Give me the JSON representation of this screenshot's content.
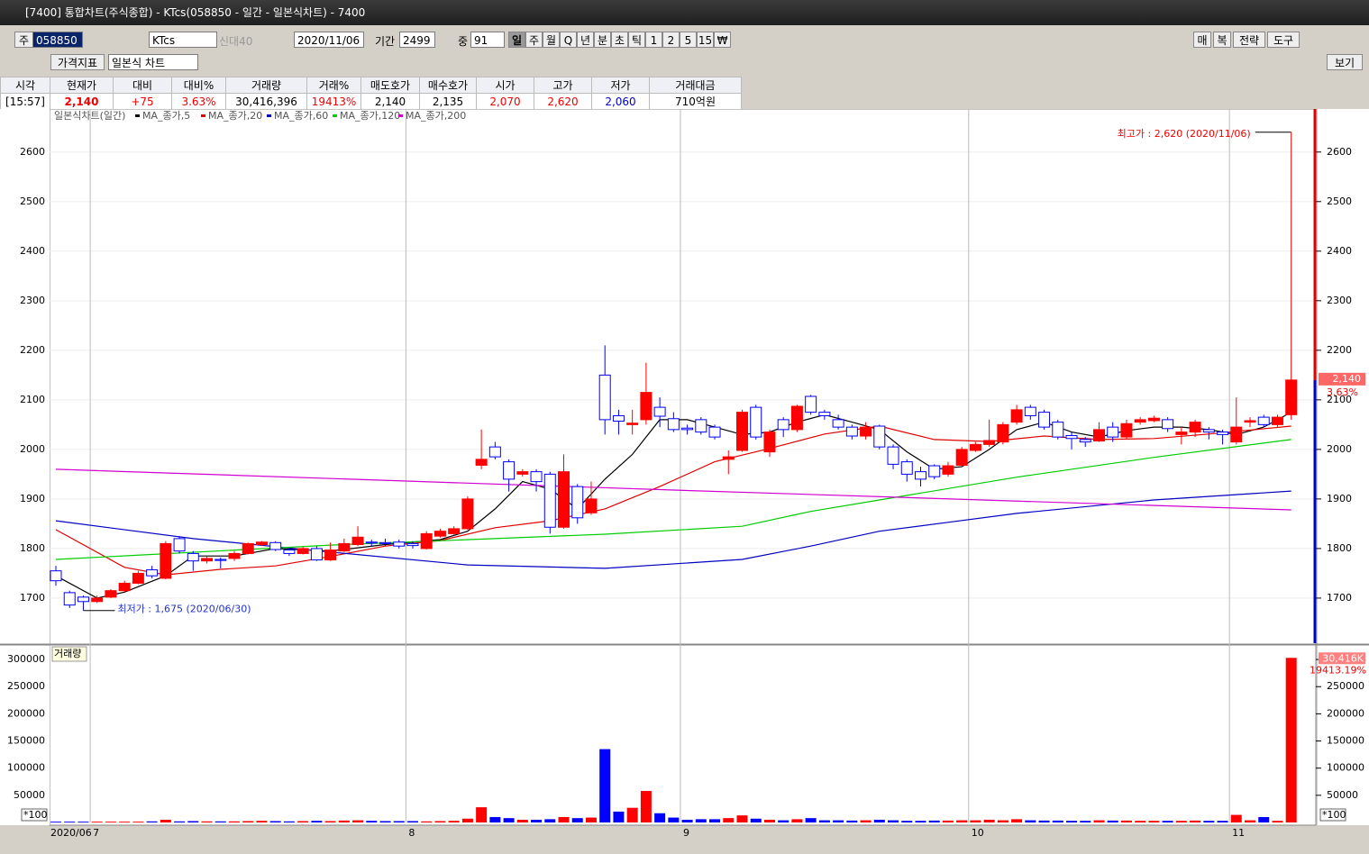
{
  "window_title": "[7400] 통합차트(주식종합) - KTcs(058850 - 일간 - 일본식차트) - 7400",
  "toolbar": {
    "market": "주",
    "code": "058850",
    "name": "KTcs",
    "tag": "신대40",
    "date": "2020/11/06",
    "period_label": "기간",
    "period": "2499",
    "count_label": "중",
    "count": "91",
    "intervals": [
      "일",
      "주",
      "월",
      "Q",
      "년",
      "분",
      "초",
      "틱",
      "1",
      "2",
      "5",
      "15",
      "₩"
    ],
    "right_buttons": [
      "매",
      "복",
      "전략",
      "도구"
    ],
    "indicator": "가격지표",
    "chart_style": "일본식 차트",
    "view": "보기"
  },
  "quote": {
    "headers": [
      "시각",
      "현재가",
      "대비",
      "대비%",
      "거래량",
      "거래%",
      "매도호가",
      "매수호가",
      "시가",
      "고가",
      "저가",
      "거래대금"
    ],
    "values": [
      "[15:57]",
      "2,140",
      "+75",
      "3.63%",
      "30,416,396",
      "19413%",
      "2,140",
      "2,135",
      "2,070",
      "2,620",
      "2,060",
      "710억원"
    ]
  },
  "chart_data": {
    "type": "candlestick",
    "legend_title": "일본식차트(일간)",
    "categories": [
      "2020/06",
      null,
      null,
      "7",
      null,
      null,
      null,
      null,
      null,
      null,
      null,
      null,
      null,
      null,
      null,
      null,
      null,
      null,
      null,
      null,
      null,
      null,
      null,
      null,
      null,
      null,
      "8",
      null,
      null,
      null,
      null,
      null,
      null,
      null,
      null,
      null,
      null,
      null,
      null,
      null,
      null,
      null,
      null,
      null,
      null,
      null,
      "9",
      null,
      null,
      null,
      null,
      null,
      null,
      null,
      null,
      null,
      null,
      null,
      null,
      null,
      null,
      null,
      null,
      null,
      null,
      null,
      null,
      "10",
      null,
      null,
      null,
      null,
      null,
      null,
      null,
      null,
      null,
      null,
      null,
      null,
      null,
      null,
      null,
      null,
      null,
      null,
      "11",
      null,
      null,
      null,
      null
    ],
    "open": [
      1755,
      1711,
      1702,
      1693,
      1702,
      1715,
      1730,
      1757,
      1740,
      1820,
      1790,
      1775,
      1778,
      1780,
      1790,
      1808,
      1812,
      1797,
      1790,
      1800,
      1777,
      1795,
      1808,
      1813,
      1812,
      1813,
      1810,
      1800,
      1825,
      1830,
      1840,
      1968,
      2005,
      1975,
      1950,
      1955,
      1950,
      1843,
      1925,
      1872,
      2150,
      2068,
      2050,
      2060,
      2085,
      2062,
      2043,
      2060,
      2045,
      1980,
      1998,
      2085,
      1995,
      2060,
      2040,
      2107,
      2075,
      2060,
      2045,
      2027,
      2047,
      2005,
      1975,
      1955,
      1967,
      1950,
      1968,
      1998,
      2010,
      2015,
      2055,
      2085,
      2075,
      2055,
      2028,
      2020,
      2017,
      2045,
      2025,
      2055,
      2058,
      2060,
      2030,
      2035,
      2040,
      2035,
      2015,
      2055,
      2065,
      2050,
      2070
    ],
    "high": [
      1765,
      1715,
      1705,
      1705,
      1718,
      1735,
      1755,
      1765,
      1815,
      1825,
      1795,
      1785,
      1782,
      1795,
      1812,
      1815,
      1815,
      1800,
      1803,
      1805,
      1812,
      1820,
      1845,
      1818,
      1820,
      1818,
      1815,
      1835,
      1840,
      1845,
      1905,
      2040,
      2015,
      1980,
      1960,
      1960,
      1955,
      1990,
      1930,
      1935,
      2210,
      2080,
      2080,
      2175,
      2105,
      2075,
      2050,
      2065,
      2050,
      1998,
      2080,
      2090,
      2040,
      2065,
      2090,
      2110,
      2080,
      2070,
      2050,
      2055,
      2050,
      2010,
      1980,
      1965,
      1970,
      1975,
      2005,
      2015,
      2060,
      2055,
      2090,
      2090,
      2080,
      2060,
      2035,
      2025,
      2055,
      2055,
      2060,
      2065,
      2068,
      2065,
      2045,
      2060,
      2045,
      2040,
      2105,
      2065,
      2070,
      2070,
      2620
    ],
    "low": [
      1725,
      1680,
      1675,
      1690,
      1700,
      1712,
      1728,
      1740,
      1738,
      1790,
      1755,
      1770,
      1760,
      1775,
      1788,
      1805,
      1795,
      1785,
      1788,
      1775,
      1775,
      1793,
      1805,
      1805,
      1805,
      1800,
      1800,
      1798,
      1822,
      1828,
      1838,
      1960,
      1980,
      1915,
      1945,
      1915,
      1830,
      1840,
      1850,
      1868,
      2030,
      2030,
      2030,
      2050,
      2045,
      2035,
      2030,
      2030,
      2020,
      1950,
      1995,
      2020,
      1985,
      2025,
      2035,
      2070,
      2060,
      2040,
      2020,
      2020,
      2000,
      1960,
      1935,
      1925,
      1940,
      1945,
      1965,
      1995,
      2005,
      2010,
      2050,
      2060,
      2040,
      2020,
      2000,
      2005,
      2015,
      2015,
      2020,
      2050,
      2055,
      2035,
      2010,
      2025,
      2020,
      2010,
      2010,
      2045,
      2045,
      2045,
      2060
    ],
    "close": [
      1735,
      1686,
      1693,
      1700,
      1715,
      1730,
      1750,
      1745,
      1810,
      1795,
      1775,
      1780,
      1776,
      1790,
      1810,
      1813,
      1798,
      1790,
      1800,
      1777,
      1797,
      1810,
      1823,
      1811,
      1810,
      1805,
      1806,
      1830,
      1835,
      1840,
      1900,
      1980,
      1985,
      1940,
      1955,
      1935,
      1843,
      1955,
      1862,
      1900,
      2060,
      2057,
      2053,
      2115,
      2067,
      2040,
      2040,
      2035,
      2025,
      1985,
      2075,
      2025,
      2035,
      2040,
      2087,
      2075,
      2068,
      2045,
      2027,
      2045,
      2005,
      1970,
      1950,
      1940,
      1945,
      1967,
      2000,
      2010,
      2018,
      2050,
      2080,
      2068,
      2045,
      2025,
      2022,
      2015,
      2040,
      2025,
      2052,
      2060,
      2063,
      2042,
      2035,
      2055,
      2035,
      2030,
      2045,
      2058,
      2050,
      2065,
      2140
    ],
    "up_color": "#ff0000",
    "down_color": "#0000ff",
    "ylim": [
      1609,
      2685
    ],
    "yticks": [
      1700,
      1800,
      1900,
      2000,
      2100,
      2200,
      2300,
      2400,
      2500,
      2600
    ],
    "grid": true,
    "series": [
      {
        "name": "MA_종가,5",
        "color": "#000000",
        "x": [
          0,
          3,
          5,
          8,
          10,
          13,
          16,
          20,
          24,
          28,
          30,
          32,
          34,
          36,
          38,
          40,
          42,
          44,
          46,
          48,
          50,
          52,
          54,
          56,
          58,
          60,
          62,
          64,
          66,
          68,
          70,
          72,
          74,
          76,
          78,
          80,
          82,
          84,
          86,
          88,
          90
        ],
        "values": [
          1745,
          1700,
          1712,
          1745,
          1785,
          1785,
          1800,
          1795,
          1808,
          1818,
          1835,
          1880,
          1935,
          1920,
          1880,
          1940,
          1990,
          2060,
          2060,
          2045,
          2030,
          2035,
          2055,
          2070,
          2055,
          2040,
          1995,
          1960,
          1965,
          2000,
          2040,
          2055,
          2035,
          2025,
          2038,
          2045,
          2045,
          2040,
          2030,
          2045,
          2075
        ]
      },
      {
        "name": "MA_종가,20",
        "color": "#e00000",
        "x": [
          0,
          5,
          8,
          12,
          16,
          20,
          24,
          28,
          32,
          36,
          40,
          44,
          48,
          52,
          56,
          60,
          64,
          68,
          72,
          76,
          80,
          84,
          90
        ],
        "values": [
          1838,
          1762,
          1747,
          1758,
          1765,
          1784,
          1805,
          1816,
          1842,
          1856,
          1880,
          1925,
          1975,
          2002,
          2031,
          2047,
          2020,
          2016,
          2027,
          2020,
          2022,
          2031,
          2047
        ]
      },
      {
        "name": "MA_종가,60",
        "color": "#0000c0",
        "x": [
          0,
          10,
          20,
          30,
          40,
          50,
          55,
          60,
          65,
          70,
          80,
          90
        ],
        "values": [
          1856,
          1820,
          1793,
          1767,
          1760,
          1778,
          1805,
          1835,
          1853,
          1871,
          1898,
          1916
        ]
      },
      {
        "name": "MA_종가,120",
        "color": "#00cc00",
        "x": [
          0,
          20,
          40,
          50,
          55,
          60,
          70,
          80,
          90
        ],
        "values": [
          1778,
          1807,
          1829,
          1845,
          1875,
          1898,
          1944,
          1984,
          2020
        ]
      },
      {
        "name": "MA_종가,200",
        "color": "#d000d0",
        "x": [
          0,
          45,
          90
        ],
        "values": [
          1960,
          1918,
          1878
        ]
      }
    ],
    "annotations": {
      "high": "최고가 : 2,620 (2020/11/06)",
      "low": "최저가 : 1,675 (2020/06/30)"
    },
    "last_price_label": "2,140",
    "change_label": "3.63%",
    "volume": {
      "title": "거래량",
      "unit_label": "*100",
      "last_label": "30,416K",
      "ratio_label": "19413.19%",
      "values": [
        1500,
        1500,
        1500,
        1500,
        1500,
        1500,
        1500,
        2000,
        5000,
        2000,
        2500,
        2000,
        2000,
        2000,
        2500,
        3000,
        2500,
        2000,
        2500,
        3000,
        2500,
        3500,
        4000,
        3000,
        2500,
        2500,
        2500,
        2000,
        2500,
        3000,
        7000,
        28000,
        10000,
        8000,
        5000,
        5000,
        6000,
        10000,
        8000,
        9000,
        135000,
        20000,
        27000,
        58000,
        17000,
        9000,
        5000,
        6000,
        6000,
        8000,
        13000,
        7000,
        5000,
        4000,
        6000,
        8000,
        4000,
        4000,
        3500,
        4000,
        5000,
        4000,
        3000,
        3000,
        3500,
        3500,
        4000,
        4000,
        5000,
        4000,
        6000,
        4000,
        3500,
        3500,
        3000,
        3000,
        4000,
        3500,
        3500,
        3000,
        3000,
        3000,
        3000,
        3500,
        3000,
        3000,
        14000,
        4000,
        10000,
        3000,
        303000
      ],
      "ylim": [
        0,
        325000
      ],
      "yticks": [
        50000,
        100000,
        150000,
        200000,
        250000,
        300000
      ]
    }
  }
}
